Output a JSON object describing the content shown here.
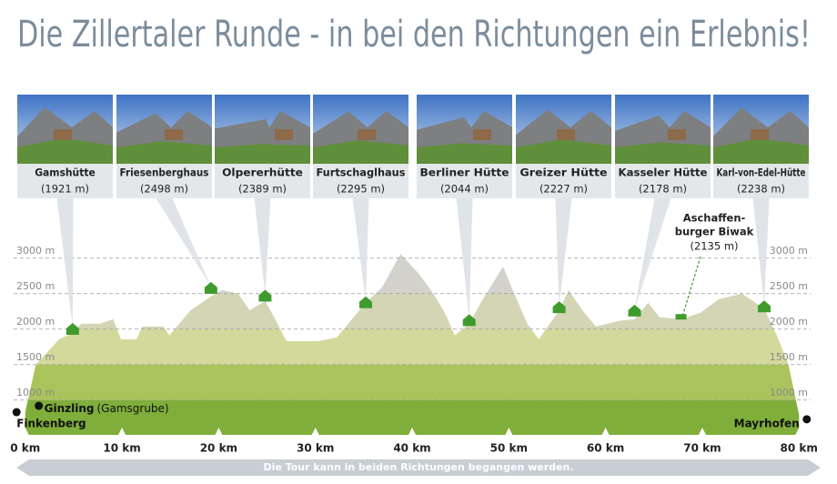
{
  "chart_data": {
    "type": "elevation-profile",
    "title": "Die Zillertaler Runde - in bei den Richtungen ein Erlebnis!",
    "xlim": [
      -1.2,
      81.2
    ],
    "xticks": [
      {
        "value": 0,
        "label": "0 km"
      },
      {
        "value": 10,
        "label": "10 km"
      },
      {
        "value": 20,
        "label": "20 km"
      },
      {
        "value": 30,
        "label": "30 km"
      },
      {
        "value": 40,
        "label": "40 km"
      },
      {
        "value": 50,
        "label": "50 km"
      },
      {
        "value": 60,
        "label": "60 km"
      },
      {
        "value": 70,
        "label": "70 km"
      },
      {
        "value": 80,
        "label": "80 km"
      }
    ],
    "ylim": [
      510,
      3200
    ],
    "yticks": [
      {
        "value": 1000,
        "label": "1000 m"
      },
      {
        "value": 1500,
        "label": "1500 m"
      },
      {
        "value": 2000,
        "label": "2000 m"
      },
      {
        "value": 2500,
        "label": "2500 m"
      },
      {
        "value": 3000,
        "label": "3000 m"
      }
    ],
    "grid": true,
    "band_colors": [
      "#7fae3a",
      "#a9c45a",
      "#d3d99a"
    ],
    "profile_color": "#d4d2cc",
    "marker_color": "#3f9c2c",
    "profile": {
      "km": [
        0,
        1.1,
        3.5,
        4.9,
        5.8,
        7.7,
        9.1,
        9.9,
        11.5,
        12.1,
        14.3,
        14.9,
        17.1,
        19.2,
        20.4,
        22.0,
        23.2,
        24.8,
        25.6,
        27.0,
        30.3,
        32.2,
        35.2,
        36.9,
        38.8,
        40.7,
        42.1,
        43.5,
        44.4,
        45.9,
        47.2,
        49.4,
        50.5,
        51.9,
        53.1,
        55.2,
        56.2,
        57.6,
        59.0,
        61.4,
        63.0,
        64.4,
        65.6,
        67.8,
        69.8,
        71.7,
        74.1,
        76.4,
        77.8,
        78.9,
        80
      ],
      "elevation": [
        830,
        1500,
        1855,
        1945,
        2075,
        2075,
        2140,
        1855,
        1855,
        2035,
        2035,
        1910,
        2265,
        2460,
        2550,
        2500,
        2265,
        2395,
        2200,
        1830,
        1830,
        1880,
        2370,
        2590,
        3060,
        2780,
        2520,
        2200,
        1910,
        2075,
        2395,
        2880,
        2520,
        2075,
        1855,
        2265,
        2550,
        2265,
        2035,
        2115,
        2140,
        2370,
        2165,
        2140,
        2230,
        2420,
        2500,
        2290,
        1880,
        1500,
        790
      ]
    },
    "huts": [
      {
        "name": "Gamshütte",
        "elevation": 1921,
        "label": "(1921 m)",
        "km": 4.9
      },
      {
        "name": "Friesenberghaus",
        "elevation": 2498,
        "label": "(2498 m)",
        "km": 19.2
      },
      {
        "name": "Olpererhütte",
        "elevation": 2389,
        "label": "(2389 m)",
        "km": 24.8
      },
      {
        "name": "Furtschaglhaus",
        "elevation": 2295,
        "label": "(2295 m)",
        "km": 35.2
      },
      {
        "name": "Berliner Hütte",
        "elevation": 2044,
        "label": "(2044 m)",
        "km": 45.9
      },
      {
        "name": "Greizer Hütte",
        "elevation": 2227,
        "label": "(2227 m)",
        "km": 55.2
      },
      {
        "name": "Kasseler Hütte",
        "elevation": 2178,
        "label": "(2178 m)",
        "km": 63.0
      },
      {
        "name": "Karl-von-Edel-Hütte",
        "elevation": 2238,
        "label": "(2238 m)",
        "km": 76.4
      }
    ],
    "bivouac": {
      "name_lines": [
        "Aschaffen-",
        "burger Biwak"
      ],
      "elevation": 2135,
      "label": "(2135 m)",
      "km": 67.8
    },
    "places": [
      {
        "name": "Finkenberg",
        "km": -0.9,
        "elevation": 830
      },
      {
        "name": "Ginzling",
        "note": "(Gamsgrube)",
        "km": 1.4,
        "elevation": 920
      },
      {
        "name": "Mayrhofen",
        "km": 80.8,
        "elevation": 730
      }
    ],
    "footer": "Die Tour kann in beiden Richtungen begangen werden."
  }
}
